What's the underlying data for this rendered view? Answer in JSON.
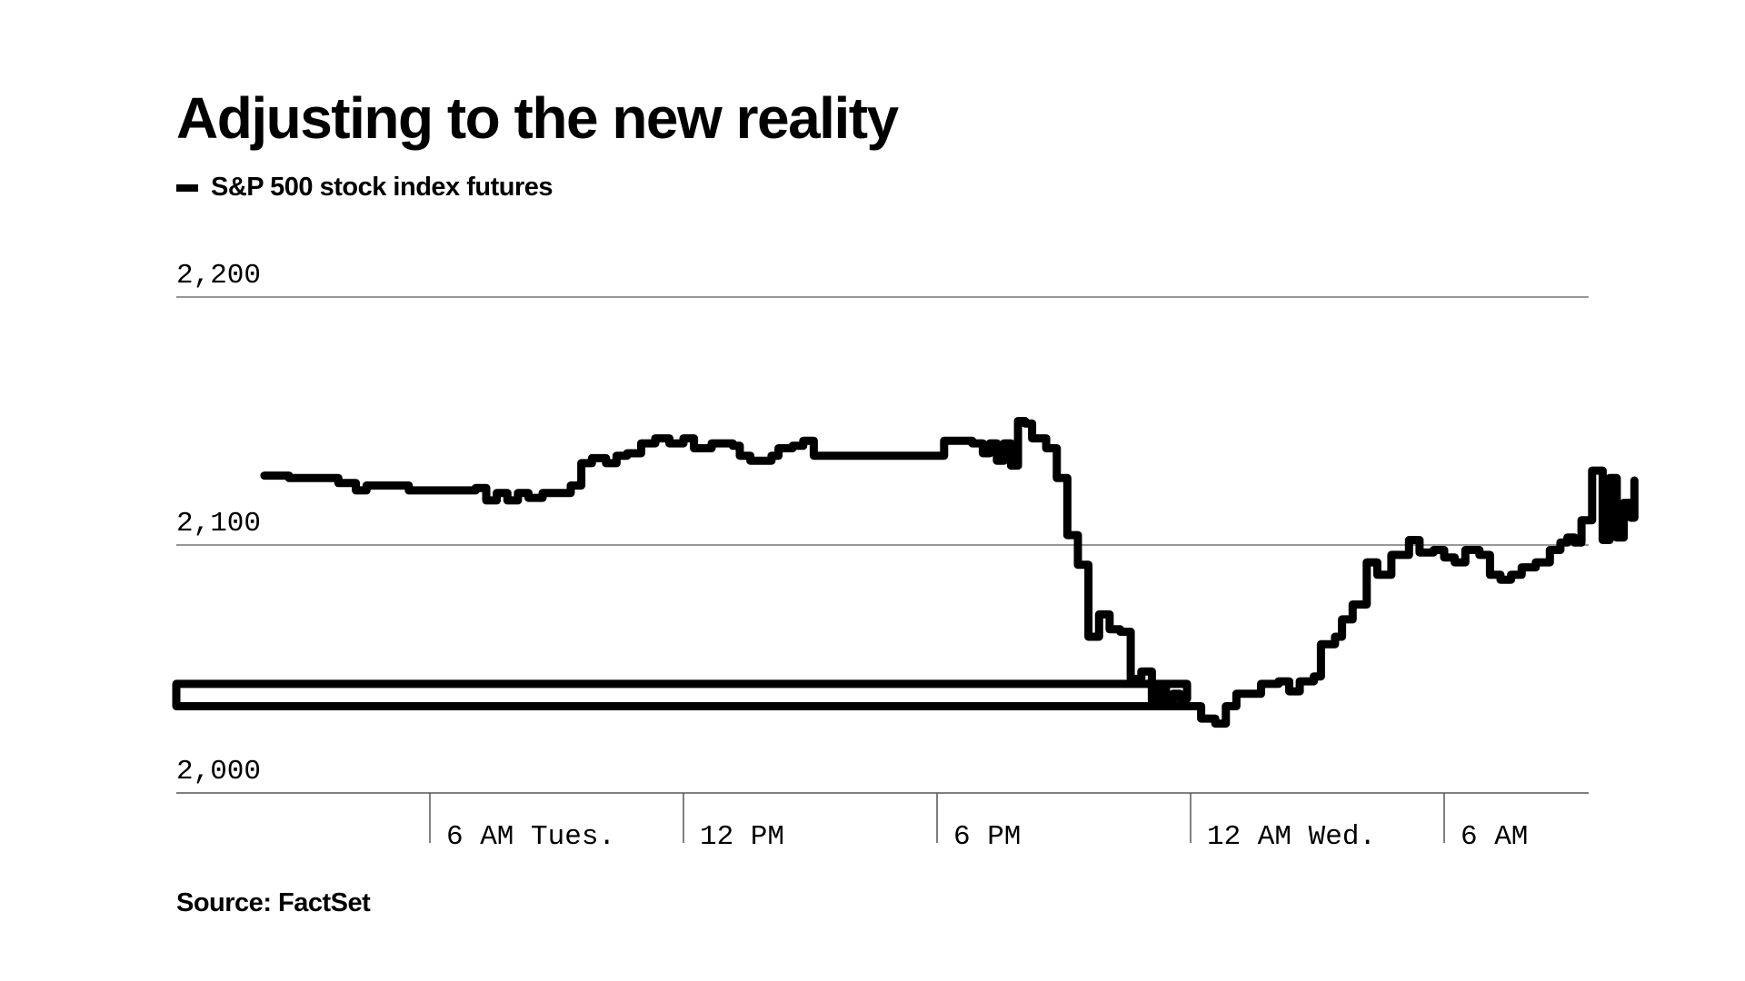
{
  "chart_data": {
    "type": "line",
    "title": "Adjusting to the new reality",
    "legend": [
      "S&P 500 stock index futures"
    ],
    "source": "Source: FactSet",
    "xlabel": "",
    "ylabel": "",
    "ylim": [
      2000,
      2200
    ],
    "yticks": [
      {
        "value": 2000,
        "label": "2,000"
      },
      {
        "value": 2100,
        "label": "2,100"
      },
      {
        "value": 2200,
        "label": "2,200"
      }
    ],
    "xlim": [
      "Tues. 12 AM",
      "Wed. 11 AM"
    ],
    "xticks": [
      {
        "x": "Tues. 6 AM",
        "label": "6 AM Tues."
      },
      {
        "x": "Tues. 12 PM",
        "label": "12 PM"
      },
      {
        "x": "Tues. 6 PM",
        "label": "6 PM"
      },
      {
        "x": "Wed. 12 AM",
        "label": "12 AM Wed."
      },
      {
        "x": "Wed. 6 AM",
        "label": "6 AM"
      }
    ],
    "grid": "horizontal",
    "series": [
      {
        "name": "S&P 500 stock index futures",
        "color": "#000000",
        "points": [
          [
            "Tues. 2:05 AM",
            2128
          ],
          [
            "Tues. 2:40 AM",
            2127
          ],
          [
            "Tues. 3:15 AM",
            2127
          ],
          [
            "Tues. 3:50 AM",
            2125
          ],
          [
            "Tues. 4:15 AM",
            2122
          ],
          [
            "Tues. 4:30 AM",
            2124
          ],
          [
            "Tues. 5:20 AM",
            2124
          ],
          [
            "Tues. 5:30 AM",
            2122
          ],
          [
            "Tues. 6:40 AM",
            2122
          ],
          [
            "Tues. 7:05 AM",
            2123
          ],
          [
            "Tues. 7:20 AM",
            2118
          ],
          [
            "Tues. 7:35 AM",
            2121
          ],
          [
            "Tues. 7:50 AM",
            2118
          ],
          [
            "Tues. 8:05 AM",
            2121
          ],
          [
            "Tues. 8:20 AM",
            2119
          ],
          [
            "Tues. 8:40 AM",
            2121
          ],
          [
            "Tues. 9:05 AM",
            2121
          ],
          [
            "Tues. 9:20 AM",
            2124
          ],
          [
            "Tues. 9:35 AM",
            2133
          ],
          [
            "Tues. 9:50 AM",
            2135
          ],
          [
            "Tues. 10:10 AM",
            2133
          ],
          [
            "Tues. 10:25 AM",
            2136
          ],
          [
            "Tues. 10:40 AM",
            2137
          ],
          [
            "Tues. 11:00 AM",
            2141
          ],
          [
            "Tues. 11:20 AM",
            2143
          ],
          [
            "Tues. 11:40 AM",
            2141
          ],
          [
            "Tues. 12:00 PM",
            2143
          ],
          [
            "Tues. 12:15 PM",
            2139
          ],
          [
            "Tues. 12:40 PM",
            2141
          ],
          [
            "Tues. 1:10 PM",
            2140
          ],
          [
            "Tues. 1:20 PM",
            2136
          ],
          [
            "Tues. 1:35 PM",
            2134
          ],
          [
            "Tues. 1:50 PM",
            2134
          ],
          [
            "Tues. 2:05 PM",
            2136
          ],
          [
            "Tues. 2:15 PM",
            2139
          ],
          [
            "Tues. 2:35 PM",
            2140
          ],
          [
            "Tues. 2:50 PM",
            2142
          ],
          [
            "Tues. 3:05 PM",
            2136
          ],
          [
            "Tues. 6:05 PM",
            2136
          ],
          [
            "Tues. 6:10 PM",
            2142
          ],
          [
            "Tues. 6:50 PM",
            2141
          ],
          [
            "Tues. 7:05 PM",
            2137
          ],
          [
            "Tues. 7:15 PM",
            2141
          ],
          [
            "Tues. 7:25 PM",
            2134
          ],
          [
            "Tues. 7:35 PM",
            2141
          ],
          [
            "Tues. 7:45 PM",
            2132
          ],
          [
            "Tues. 7:55 PM",
            2150
          ],
          [
            "Tues. 8:05 PM",
            2149
          ],
          [
            "Tues. 8:15 PM",
            2143
          ],
          [
            "Tues. 8:35 PM",
            2139
          ],
          [
            "Tues. 8:50 PM",
            2127
          ],
          [
            "Tues. 9:05 PM",
            2104
          ],
          [
            "Tues. 9:20 PM",
            2092
          ],
          [
            "Tues. 9:35 PM",
            2063
          ],
          [
            "Tues. 9:50 PM",
            2072
          ],
          [
            "Tues. 10:05 PM",
            2066
          ],
          [
            "Tues. 10:20 PM",
            2065
          ],
          [
            "Tues. 10:35 PM",
            2046
          ],
          [
            "Tues. 10:50 PM",
            2049
          ],
          [
            "Tues. 11:05 PM",
            2035
          ],
          [
            "Tues. 11:15 PM",
            2043
          ],
          [
            "Tues. 11:25 PM",
            2036
          ],
          [
            "Tues. 11:35 PM",
            2040
          ],
          [
            "Tues. 11:45 PM",
            2038
          ],
          [
            "Tues. 11:55 PM",
            2044
          ],
          [
            "Tues. 12:00 AM",
            2035
          ],
          [
            "Wed. 12:15 AM",
            2030
          ],
          [
            "Wed. 12:35 AM",
            2028
          ],
          [
            "Wed. 12:50 AM",
            2035
          ],
          [
            "Wed. 1:05 AM",
            2040
          ],
          [
            "Wed. 1:25 AM",
            2040
          ],
          [
            "Wed. 1:40 AM",
            2044
          ],
          [
            "Wed. 2:05 AM",
            2045
          ],
          [
            "Wed. 2:20 AM",
            2041
          ],
          [
            "Wed. 2:35 AM",
            2045
          ],
          [
            "Wed. 2:55 AM",
            2047
          ],
          [
            "Wed. 3:05 AM",
            2060
          ],
          [
            "Wed. 3:25 AM",
            2063
          ],
          [
            "Wed. 3:35 AM",
            2070
          ],
          [
            "Wed. 3:50 AM",
            2076
          ],
          [
            "Wed. 4:10 AM",
            2093
          ],
          [
            "Wed. 4:25 AM",
            2088
          ],
          [
            "Wed. 4:45 AM",
            2096
          ],
          [
            "Wed. 5:10 AM",
            2102
          ],
          [
            "Wed. 5:25 AM",
            2097
          ],
          [
            "Wed. 5:45 AM",
            2098
          ],
          [
            "Wed. 6:00 AM",
            2095
          ],
          [
            "Wed. 6:15 AM",
            2093
          ],
          [
            "Wed. 6:30 AM",
            2098
          ],
          [
            "Wed. 6:50 AM",
            2096
          ],
          [
            "Wed. 7:05 AM",
            2088
          ],
          [
            "Wed. 7:20 AM",
            2086
          ],
          [
            "Wed. 7:35 AM",
            2088
          ],
          [
            "Wed. 7:50 AM",
            2091
          ],
          [
            "Wed. 8:10 AM",
            2093
          ],
          [
            "Wed. 8:30 AM",
            2098
          ],
          [
            "Wed. 8:45 AM",
            2101
          ],
          [
            "Wed. 8:55 AM",
            2103
          ],
          [
            "Wed. 9:05 AM",
            2101
          ],
          [
            "Wed. 9:15 AM",
            2110
          ],
          [
            "Wed. 9:30 AM",
            2130
          ],
          [
            "Wed. 9:45 AM",
            2102
          ],
          [
            "Wed. 9:55 AM",
            2127
          ],
          [
            "Wed. 10:05 AM",
            2103
          ],
          [
            "Wed. 10:15 AM",
            2117
          ],
          [
            "Wed. 10:25 AM",
            2111
          ],
          [
            "Wed. 10:30 AM",
            2126
          ]
        ]
      }
    ]
  }
}
